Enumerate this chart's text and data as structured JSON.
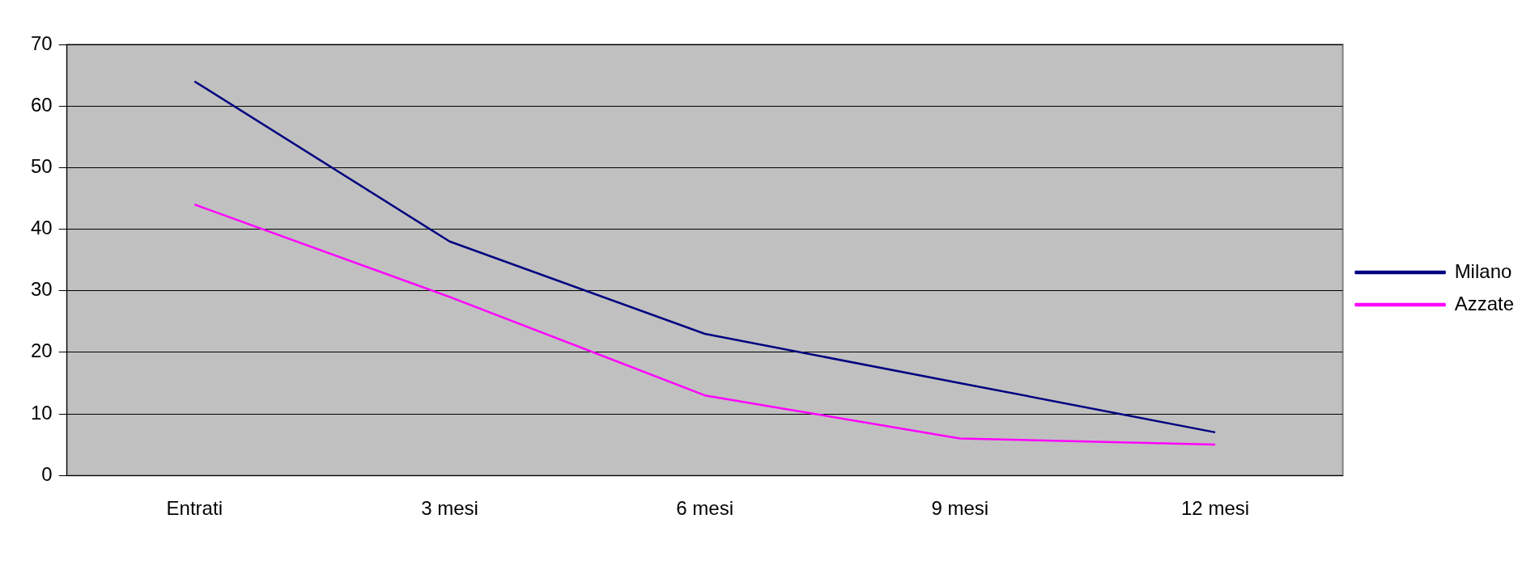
{
  "chart_data": {
    "type": "line",
    "categories": [
      "Entrati",
      "3 mesi",
      "6 mesi",
      "9 mesi",
      "12 mesi"
    ],
    "series": [
      {
        "name": "Milano",
        "color": "#000080",
        "values": [
          64,
          38,
          23,
          15,
          7
        ]
      },
      {
        "name": "Azzate",
        "color": "#ff00ff",
        "values": [
          44,
          29,
          13,
          6,
          5
        ]
      }
    ],
    "ylim": [
      0,
      70
    ],
    "yticks": [
      0,
      10,
      20,
      30,
      40,
      50,
      60,
      70
    ],
    "grid": "y",
    "legend": "right",
    "marker": "none",
    "line_style": "solid"
  }
}
